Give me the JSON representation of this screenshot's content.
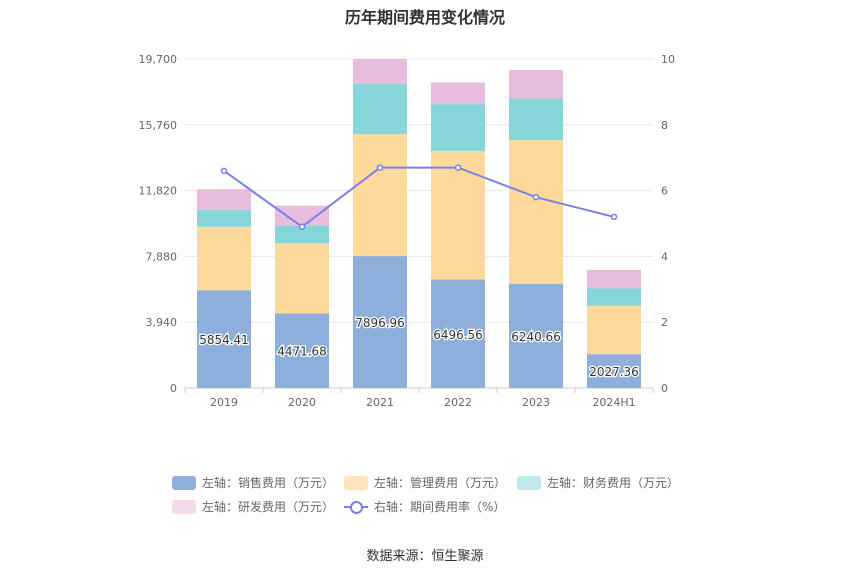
{
  "chart_data": {
    "type": "bar",
    "title": "历年期间费用变化情况",
    "categories": [
      "2019",
      "2020",
      "2021",
      "2022",
      "2023",
      "2024H1"
    ],
    "left_axis": {
      "ticks": [
        "0",
        "3,940",
        "7,880",
        "11,820",
        "15,760",
        "19,700"
      ],
      "min": 0,
      "max": 19700
    },
    "right_axis": {
      "ticks": [
        "0",
        "2",
        "4",
        "6",
        "8",
        "10"
      ],
      "min": 0,
      "max": 10
    },
    "series": [
      {
        "name": "左轴：销售费用（万元）",
        "color": "#8eaedb",
        "values": [
          5854.41,
          4471.68,
          7896.96,
          6496.56,
          6240.66,
          2027.36
        ],
        "labels": [
          "5854.41",
          "4471.68",
          "7896.96",
          "6496.56",
          "6240.66",
          "2027.36"
        ]
      },
      {
        "name": "左轴：管理费用（万元）",
        "color": "#fdd99c",
        "values": [
          3800,
          4200,
          7300,
          7700,
          8600,
          2900
        ]
      },
      {
        "name": "左轴：财务费用（万元）",
        "color": "#86d5d9",
        "values": [
          1000,
          1050,
          3000,
          2800,
          2500,
          1050
        ]
      },
      {
        "name": "左轴：研发费用（万元）",
        "color": "#e8bcdc",
        "values": [
          1250,
          1200,
          1500,
          1300,
          1700,
          1100
        ]
      }
    ],
    "line": {
      "name": "右轴：期间费用率（%）",
      "color": "#7b7fea",
      "values": [
        6.6,
        4.9,
        6.7,
        6.7,
        5.8,
        5.2
      ]
    },
    "legend_position": "bottom"
  },
  "source": "数据来源：恒生聚源"
}
